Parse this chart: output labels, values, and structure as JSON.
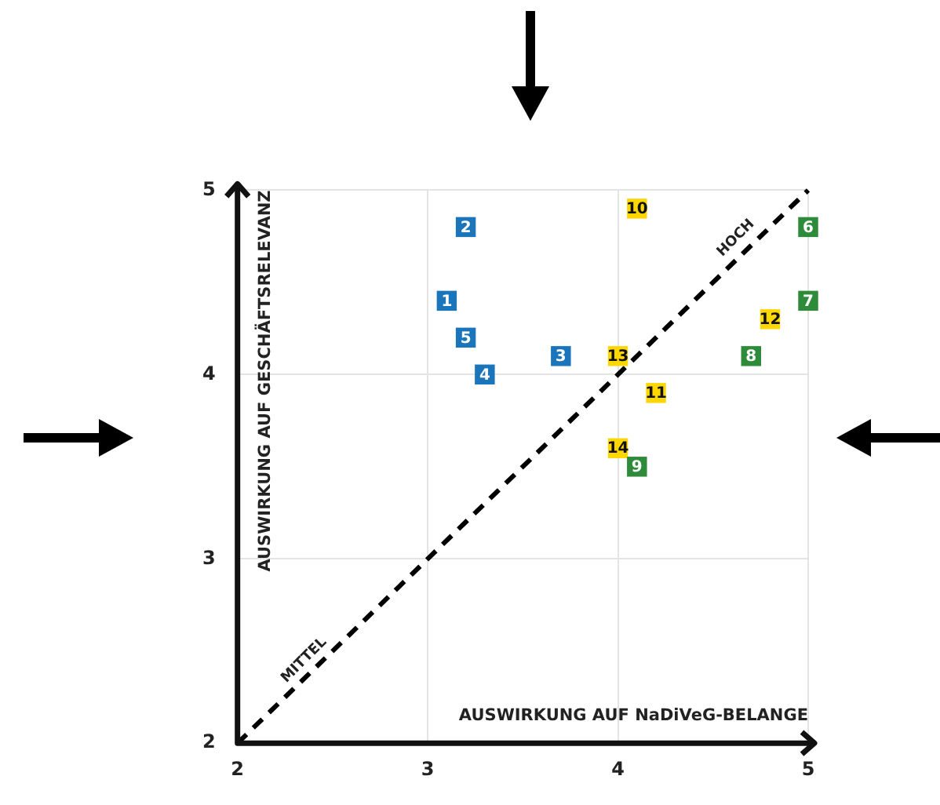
{
  "chart_data": {
    "type": "scatter",
    "xlabel": "AUSWIRKUNG AUF NaDiVeG-BELANGE",
    "ylabel": "AUSWIRKUNG AUF GESCHÄFTSRELEVANZ",
    "xlim": [
      2,
      5
    ],
    "ylim": [
      2,
      5
    ],
    "xticks": [
      2,
      3,
      4,
      5
    ],
    "yticks": [
      2,
      3,
      4,
      5
    ],
    "grid": true,
    "marker": "square",
    "series": [
      {
        "color": "#1a75bb",
        "x": [
          3.1,
          3.2,
          3.7,
          3.3,
          3.2
        ],
        "values": [
          4.4,
          4.8,
          4.1,
          4.0,
          4.2
        ]
      },
      {
        "color": "#2e8b3a",
        "x": [
          5.0,
          5.0,
          4.7,
          4.1
        ],
        "values": [
          4.8,
          4.4,
          4.1,
          3.5
        ]
      },
      {
        "color": "#ffd700",
        "x": [
          4.1,
          4.2,
          4.8,
          4.0,
          4.0
        ],
        "values": [
          4.9,
          3.9,
          4.3,
          4.1,
          3.6
        ]
      },
      {
        "type": "line",
        "color": "#000000",
        "x": [
          2,
          5
        ],
        "values": [
          2,
          5
        ],
        "marker": "none",
        "line_style": "dashed"
      }
    ],
    "annotations": [
      {
        "text": "1",
        "x": 3.1,
        "y": 4.4
      },
      {
        "text": "2",
        "x": 3.2,
        "y": 4.8
      },
      {
        "text": "3",
        "x": 3.7,
        "y": 4.1
      },
      {
        "text": "4",
        "x": 3.3,
        "y": 4.0
      },
      {
        "text": "5",
        "x": 3.2,
        "y": 4.2
      },
      {
        "text": "6",
        "x": 5.0,
        "y": 4.8
      },
      {
        "text": "7",
        "x": 5.0,
        "y": 4.4
      },
      {
        "text": "8",
        "x": 4.7,
        "y": 4.1
      },
      {
        "text": "9",
        "x": 4.1,
        "y": 3.5
      },
      {
        "text": "10",
        "x": 4.1,
        "y": 4.9
      },
      {
        "text": "11",
        "x": 4.2,
        "y": 3.9
      },
      {
        "text": "12",
        "x": 4.8,
        "y": 4.3
      },
      {
        "text": "13",
        "x": 4.0,
        "y": 4.1
      },
      {
        "text": "14",
        "x": 4.0,
        "y": 3.6
      },
      {
        "text": "MITTEL",
        "x": 2.35,
        "y": 2.45
      },
      {
        "text": "HOCH",
        "x": 4.62,
        "y": 4.74
      }
    ]
  }
}
